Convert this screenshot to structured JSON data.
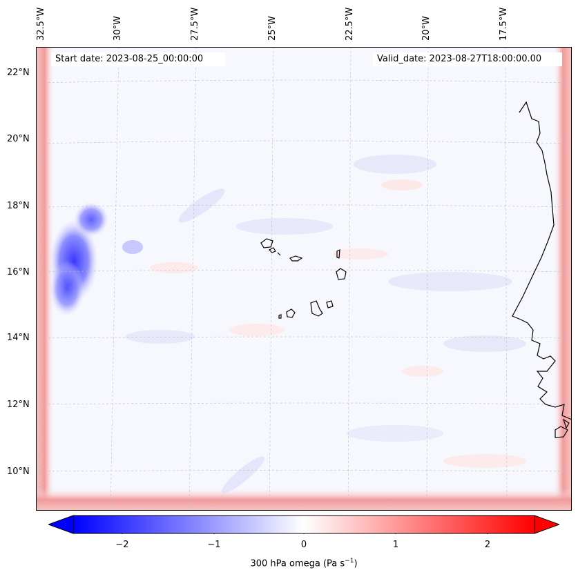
{
  "map": {
    "start_date": "Start date: 2023-08-25_00:00:00",
    "valid_date": "Valid_date: 2023-08-27T18:00:00.00",
    "lon_labels": [
      "32.5°W",
      "30°W",
      "27.5°W",
      "25°W",
      "22.5°W",
      "20°W",
      "17.5°W"
    ],
    "lat_labels": [
      "22°N",
      "20°N",
      "18°N",
      "16°N",
      "14°N",
      "12°N",
      "10°N"
    ]
  },
  "colorbar": {
    "ticks": [
      "−2",
      "−1",
      "0",
      "1",
      "2"
    ],
    "label_prefix": "300 hPa omega (Pa s",
    "label_exp": "−1",
    "label_suffix": ")",
    "min": -2.7,
    "max": 2.7,
    "colors": {
      "low": "#0000ff",
      "mid": "#ffffff",
      "high": "#ff0000"
    }
  }
}
